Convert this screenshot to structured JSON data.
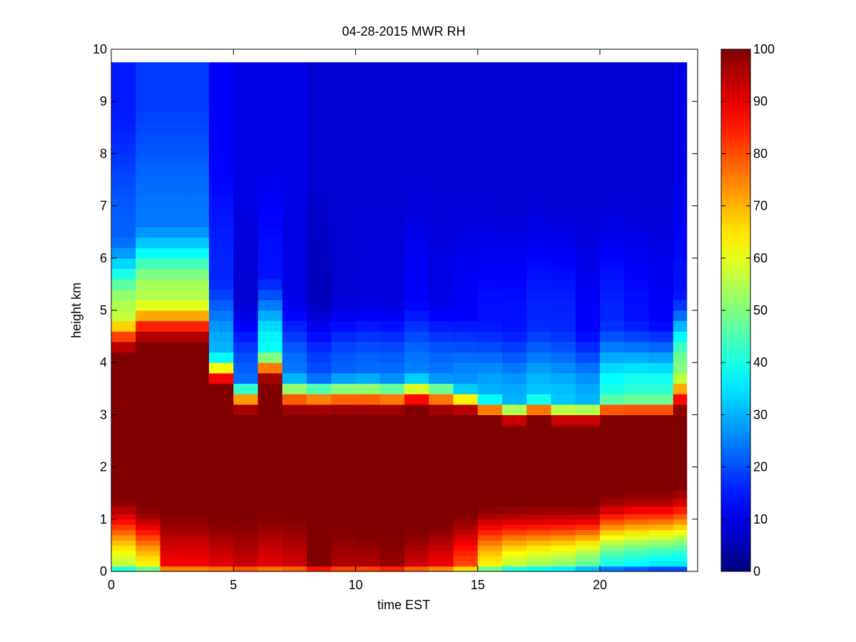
{
  "chart_data": {
    "type": "heatmap",
    "title": "04-28-2015 MWR RH",
    "xlabel": "time EST",
    "ylabel": "height km",
    "xlim": [
      0,
      24
    ],
    "ylim": [
      0,
      10
    ],
    "xticks": [
      0,
      5,
      10,
      15,
      20
    ],
    "yticks": [
      0,
      1,
      2,
      3,
      4,
      5,
      6,
      7,
      8,
      9,
      10
    ],
    "colorbar": {
      "ticks": [
        0,
        10,
        20,
        30,
        40,
        50,
        60,
        70,
        80,
        90,
        100
      ],
      "clim": [
        0,
        100
      ],
      "colormap": "jet"
    },
    "grid": false,
    "x": [
      0,
      1,
      2,
      3,
      4,
      5,
      6,
      7,
      8,
      9,
      10,
      11,
      12,
      13,
      14,
      15,
      16,
      17,
      18,
      19,
      20,
      21,
      22,
      23
    ],
    "y": [
      0,
      0.1,
      0.2,
      0.3,
      0.4,
      0.5,
      0.6,
      0.7,
      0.8,
      0.9,
      1.0,
      1.1,
      1.25,
      1.4,
      1.55,
      1.7,
      1.85,
      2.0,
      2.2,
      2.4,
      2.6,
      2.8,
      3.0,
      3.2,
      3.4,
      3.6,
      3.8,
      4.0,
      4.2,
      4.4,
      4.6,
      4.8,
      5.0,
      5.2,
      5.4,
      5.6,
      5.8,
      6.0,
      6.2,
      6.4,
      6.6,
      6.8,
      7.0,
      7.2,
      7.4,
      7.6,
      7.8,
      8.0,
      8.2,
      8.4,
      8.6,
      8.8,
      9.0,
      9.2,
      9.4,
      9.6
    ],
    "y_top": 9.75,
    "profiles": {
      "moist_top": [
        4.1,
        4.3,
        4.3,
        4.3,
        3.5,
        3.0,
        3.6,
        3.0,
        3.0,
        3.0,
        3.0,
        3.0,
        3.1,
        3.0,
        3.0,
        2.9,
        2.8,
        2.9,
        2.8,
        2.8,
        2.9,
        2.9,
        2.9,
        3.0
      ],
      "fall_width": [
        0.9,
        1.0,
        1.0,
        1.0,
        0.75,
        0.75,
        0.7,
        0.85,
        0.8,
        0.85,
        0.85,
        0.8,
        0.75,
        0.8,
        0.6,
        0.5,
        0.5,
        0.5,
        0.5,
        0.5,
        0.5,
        0.5,
        0.5,
        0.9
      ],
      "mid_rh": [
        55,
        55,
        55,
        55,
        30,
        22,
        38,
        24,
        20,
        22,
        23,
        23,
        25,
        24,
        27,
        30,
        30,
        32,
        32,
        30,
        40,
        42,
        42,
        50
      ],
      "upper_rh": [
        22,
        24,
        24,
        24,
        16,
        8,
        14,
        10,
        6,
        8,
        9,
        9,
        12,
        10,
        12,
        14,
        14,
        16,
        16,
        12,
        16,
        14,
        12,
        14
      ],
      "top_rh": [
        15,
        18,
        18,
        18,
        12,
        10,
        10,
        10,
        8,
        8,
        8,
        8,
        8,
        8,
        8,
        8,
        8,
        8,
        8,
        8,
        8,
        8,
        8,
        10
      ],
      "moist_bottom": [
        1.5,
        1.3,
        1.25,
        1.25,
        1.1,
        1.1,
        1.25,
        1.2,
        0.95,
        0.95,
        0.85,
        0.85,
        0.9,
        1.0,
        1.2,
        1.35,
        1.35,
        1.35,
        1.35,
        1.35,
        1.55,
        1.6,
        1.6,
        1.7
      ],
      "near_surface_rh": [
        55,
        62,
        88,
        88,
        90,
        93,
        90,
        92,
        100,
        95,
        95,
        98,
        92,
        88,
        80,
        62,
        55,
        52,
        50,
        45,
        38,
        36,
        34,
        34
      ]
    }
  }
}
